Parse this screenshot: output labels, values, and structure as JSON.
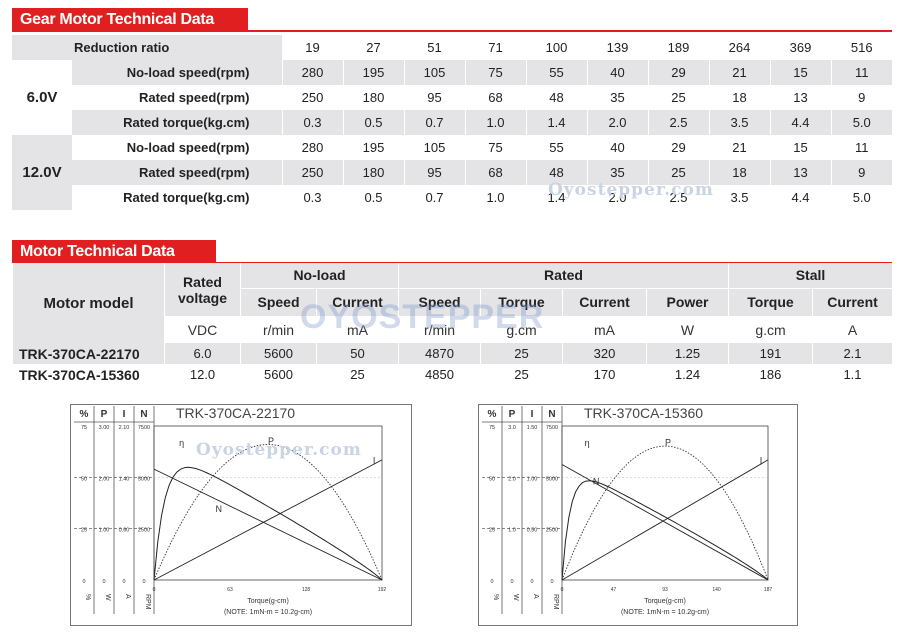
{
  "gear": {
    "title": "Gear Motor Technical Data",
    "ratio_label": "Reduction ratio",
    "ratios": [
      "19",
      "27",
      "51",
      "71",
      "100",
      "139",
      "189",
      "264",
      "369",
      "516"
    ],
    "row_labels": {
      "noload": "No-load speed(rpm)",
      "rated_speed": "Rated speed(rpm)",
      "rated_torque": "Rated torque(kg.cm)"
    },
    "v6": {
      "voltage": "6.0V",
      "noload": [
        "280",
        "195",
        "105",
        "75",
        "55",
        "40",
        "29",
        "21",
        "15",
        "11"
      ],
      "rated_speed": [
        "250",
        "180",
        "95",
        "68",
        "48",
        "35",
        "25",
        "18",
        "13",
        "9"
      ],
      "rated_torque": [
        "0.3",
        "0.5",
        "0.7",
        "1.0",
        "1.4",
        "2.0",
        "2.5",
        "3.5",
        "4.4",
        "5.0"
      ]
    },
    "v12": {
      "voltage": "12.0V",
      "noload": [
        "280",
        "195",
        "105",
        "75",
        "55",
        "40",
        "29",
        "21",
        "15",
        "11"
      ],
      "rated_speed": [
        "250",
        "180",
        "95",
        "68",
        "48",
        "35",
        "25",
        "18",
        "13",
        "9"
      ],
      "rated_torque": [
        "0.3",
        "0.5",
        "0.7",
        "1.0",
        "1.4",
        "2.0",
        "2.5",
        "3.5",
        "4.4",
        "5.0"
      ]
    }
  },
  "motor": {
    "title": "Motor Technical Data",
    "h_model": "Motor model",
    "h_rated_voltage": "Rated voltage",
    "h_noload": "No-load",
    "h_rated": "Rated",
    "h_stall": "Stall",
    "h_speed": "Speed",
    "h_current": "Current",
    "h_torque": "Torque",
    "h_power": "Power",
    "units": {
      "voltage": "VDC",
      "nl_speed": "r/min",
      "nl_current": "mA",
      "r_speed": "r/min",
      "r_torque": "g.cm",
      "r_current": "mA",
      "r_power": "W",
      "s_torque": "g.cm",
      "s_current": "A"
    },
    "rows": [
      {
        "model": "TRK-370CA-22170",
        "voltage": "6.0",
        "nl_speed": "5600",
        "nl_current": "50",
        "r_speed": "4870",
        "r_torque": "25",
        "r_current": "320",
        "r_power": "1.25",
        "s_torque": "191",
        "s_current": "2.1"
      },
      {
        "model": "TRK-370CA-15360",
        "voltage": "12.0",
        "nl_speed": "5600",
        "nl_current": "25",
        "r_speed": "4850",
        "r_torque": "25",
        "r_current": "170",
        "r_power": "1.24",
        "s_torque": "186",
        "s_current": "1.1"
      }
    ]
  },
  "watermarks": {
    "site": "Oyostepper.com",
    "logo": "OYOSTEPPER"
  },
  "curves": [
    {
      "title": "TRK-370CA-22170",
      "col_heads": [
        "%",
        "P",
        "I",
        "N"
      ],
      "col_units": [
        "%",
        "W",
        "A",
        "RPM"
      ],
      "rows": [
        [
          "75",
          "3.00",
          "2.10",
          "7500"
        ],
        [
          "50",
          "2.00",
          "1.40",
          "5000"
        ],
        [
          "25",
          "1.00",
          "0.60",
          "2500"
        ],
        [
          "0",
          "0",
          "0",
          "0"
        ]
      ],
      "x_ticks": [
        "0",
        "63",
        "128",
        "192"
      ],
      "xlabel": "Torque(g-cm)",
      "note": "(NOTE: 1mN-m = 10.2g-cm)",
      "labels": {
        "eff": "η",
        "power": "P",
        "current": "I",
        "speed": "N"
      }
    },
    {
      "title": "TRK-370CA-15360",
      "col_heads": [
        "%",
        "P",
        "I",
        "N"
      ],
      "col_units": [
        "%",
        "W",
        "A",
        "RPM"
      ],
      "rows": [
        [
          "75",
          "3.0",
          "1.50",
          "7500"
        ],
        [
          "50",
          "2.0",
          "1.00",
          "5000"
        ],
        [
          "25",
          "1.0",
          "0.50",
          "2500"
        ],
        [
          "0",
          "0",
          "0",
          "0"
        ]
      ],
      "x_ticks": [
        "0",
        "47",
        "93",
        "140",
        "187"
      ],
      "xlabel": "Torque(g-cm)",
      "note": "(NOTE: 1mN-m = 10.2g-cm)",
      "labels": {
        "eff": "η",
        "power": "P",
        "current": "I",
        "speed": "N"
      }
    }
  ]
}
